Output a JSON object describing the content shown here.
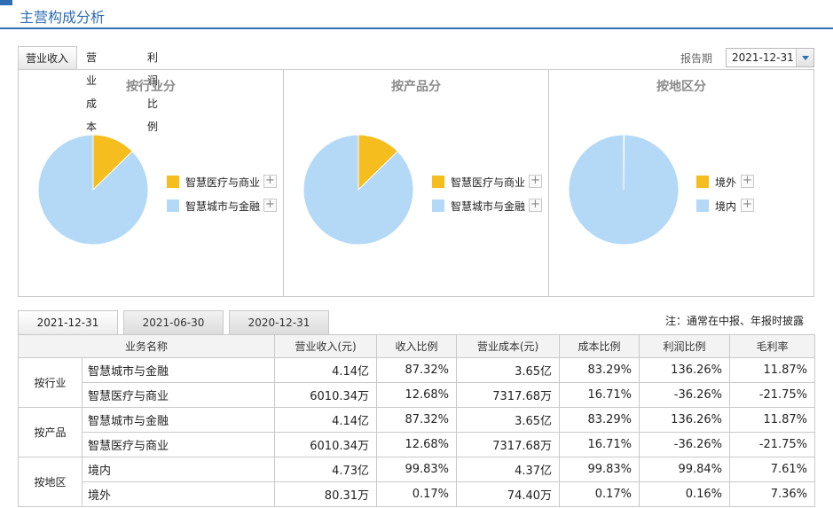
{
  "header": {
    "title": "主营构成分析"
  },
  "top_tabs": [
    "营业收入",
    "营业成本",
    "利润比例"
  ],
  "report": {
    "label": "报告期",
    "value": "2021-12-31"
  },
  "colors": {
    "segment_a": "#f5be1e",
    "segment_b": "#b3d9f7"
  },
  "panels": [
    {
      "title": "按行业分",
      "legend": [
        "智慧医疗与商业",
        "智慧城市与金融"
      ],
      "share_pct": [
        12.68,
        87.32
      ]
    },
    {
      "title": "按产品分",
      "legend": [
        "智慧医疗与商业",
        "智慧城市与金融"
      ],
      "share_pct": [
        12.68,
        87.32
      ]
    },
    {
      "title": "按地区分",
      "legend": [
        "境外",
        "境内"
      ],
      "share_pct": [
        0.17,
        99.83
      ]
    }
  ],
  "date_tabs": [
    "2021-12-31",
    "2021-06-30",
    "2020-12-31"
  ],
  "note": "注：通常在中报、年报时披露",
  "table": {
    "headers": [
      "业务名称",
      "营业收入(元)",
      "收入比例",
      "营业成本(元)",
      "成本比例",
      "利润比例",
      "毛利率"
    ],
    "groups": [
      {
        "label": "按行业",
        "rows": [
          [
            "智慧城市与金融",
            "4.14亿",
            "87.32%",
            "3.65亿",
            "83.29%",
            "136.26%",
            "11.87%"
          ],
          [
            "智慧医疗与商业",
            "6010.34万",
            "12.68%",
            "7317.68万",
            "16.71%",
            "-36.26%",
            "-21.75%"
          ]
        ]
      },
      {
        "label": "按产品",
        "rows": [
          [
            "智慧城市与金融",
            "4.14亿",
            "87.32%",
            "3.65亿",
            "83.29%",
            "136.26%",
            "11.87%"
          ],
          [
            "智慧医疗与商业",
            "6010.34万",
            "12.68%",
            "7317.68万",
            "16.71%",
            "-36.26%",
            "-21.75%"
          ]
        ]
      },
      {
        "label": "按地区",
        "rows": [
          [
            "境内",
            "4.73亿",
            "99.83%",
            "4.37亿",
            "99.83%",
            "99.84%",
            "7.61%"
          ],
          [
            "境外",
            "80.31万",
            "0.17%",
            "74.40万",
            "0.17%",
            "0.16%",
            "7.36%"
          ]
        ]
      }
    ]
  }
}
